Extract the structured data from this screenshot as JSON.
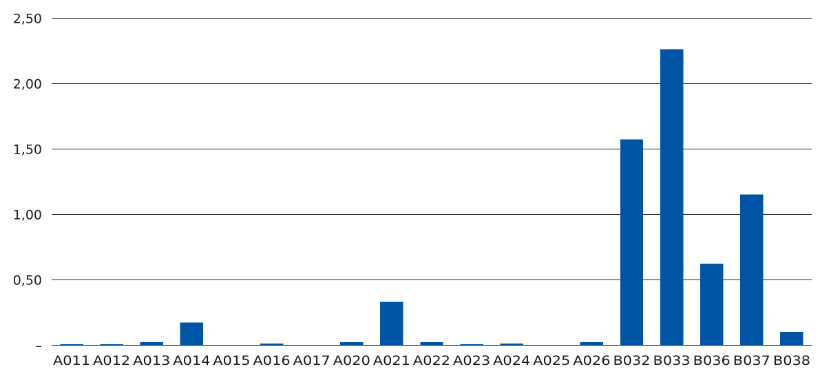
{
  "chart_data": {
    "type": "bar",
    "categories": [
      "A011",
      "A012",
      "A013",
      "A014",
      "A015",
      "A016",
      "A017",
      "A020",
      "A021",
      "A022",
      "A023",
      "A024",
      "A025",
      "A026",
      "B032",
      "B033",
      "B036",
      "B037",
      "B038"
    ],
    "values": [
      0.005,
      0.005,
      0.02,
      0.17,
      0.0,
      0.01,
      0.0,
      0.02,
      0.33,
      0.02,
      0.005,
      0.01,
      0.0,
      0.02,
      1.57,
      2.26,
      0.62,
      1.15,
      0.1
    ],
    "ylim": [
      0,
      2.5
    ],
    "yticks": [
      {
        "value": 0,
        "label": "–"
      },
      {
        "value": 0.5,
        "label": "0,50"
      },
      {
        "value": 1.0,
        "label": "1,00"
      },
      {
        "value": 1.5,
        "label": "1,50"
      },
      {
        "value": 2.0,
        "label": "2,00"
      },
      {
        "value": 2.5,
        "label": "2,50"
      }
    ],
    "grid": true,
    "bar_color": "#0054a6",
    "title": "",
    "xlabel": "",
    "ylabel": ""
  }
}
